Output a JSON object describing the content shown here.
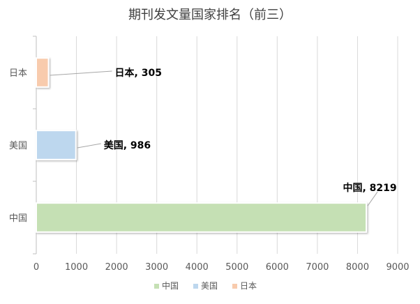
{
  "chart_data": {
    "type": "bar",
    "orientation": "horizontal",
    "title": "期刊发文量国家排名（前三）",
    "categories": [
      "中国",
      "美国",
      "日本"
    ],
    "values": [
      8219,
      986,
      305
    ],
    "xlim": [
      0,
      9000
    ],
    "xticks": [
      0,
      1000,
      2000,
      3000,
      4000,
      5000,
      6000,
      7000,
      8000,
      9000
    ],
    "grid": "vertical",
    "legend_position": "bottom",
    "colors": [
      "#c5e0b4",
      "#bdd7ee",
      "#f8cbad"
    ],
    "data_labels": [
      "中国, 8219",
      "美国, 986",
      "日本, 305"
    ],
    "legend": [
      "中国",
      "美国",
      "日本"
    ]
  }
}
